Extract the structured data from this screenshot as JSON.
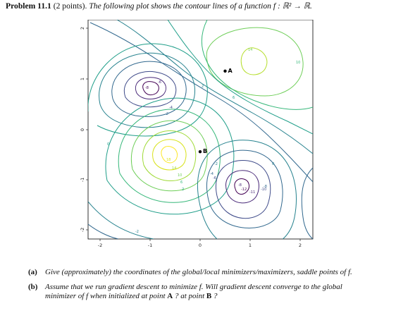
{
  "header": {
    "problem_number": "Problem 11.1",
    "points": "(2 points).",
    "description": "The following plot shows the contour lines of a function",
    "function_signature": "f : ℝ² → ℝ."
  },
  "plot": {
    "x_ticks": [
      "-2",
      "-1",
      "0",
      "1",
      "2"
    ],
    "y_ticks": [
      "2",
      "1",
      "0",
      "-1",
      "-2"
    ],
    "points": [
      {
        "name": "A",
        "x": 0.5,
        "y": 1.15
      },
      {
        "name": "B",
        "x": 0.0,
        "y": -0.45
      }
    ],
    "contour_labels": [
      "14",
      "10",
      "6",
      "2",
      "-2",
      "-4",
      "-8",
      "-6",
      "0",
      "18",
      "14",
      "10",
      "6",
      "2",
      "-2",
      "-4",
      "-6",
      "-8",
      "-12",
      "-11",
      "-10",
      "-8",
      "0",
      "-2"
    ],
    "colors": {
      "very_low": "#440154",
      "low": "#3b528b",
      "mid": "#21918c",
      "high": "#5ec962",
      "very_high": "#fde725"
    }
  },
  "questions": [
    {
      "label": "(a)",
      "text": "Give (approximately) the coordinates of the global/local minimizers/maximizers, saddle points of f."
    },
    {
      "label": "(b)",
      "text_parts": [
        "Assume that we run gradient descent to minimize f. Will gradient descent converge to the global minimizer of f when initialized at point ",
        "A",
        " ? at point ",
        "B",
        " ?"
      ]
    }
  ]
}
